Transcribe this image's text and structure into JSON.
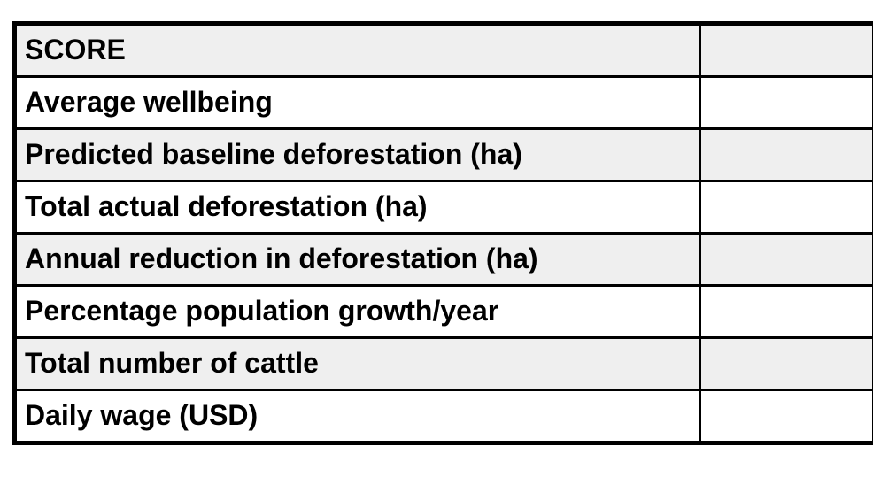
{
  "table": {
    "rows": [
      {
        "label": "SCORE",
        "value": ""
      },
      {
        "label": "Average wellbeing",
        "value": ""
      },
      {
        "label": "Predicted baseline deforestation (ha)",
        "value": ""
      },
      {
        "label": "Total actual deforestation (ha)",
        "value": ""
      },
      {
        "label": "Annual reduction in deforestation (ha)",
        "value": ""
      },
      {
        "label": "Percentage population growth/year",
        "value": ""
      },
      {
        "label": "Total number of cattle",
        "value": ""
      },
      {
        "label": "Daily wage (USD)",
        "value": ""
      }
    ],
    "colors": {
      "row_shade": "#efefef",
      "row_plain": "#ffffff",
      "border": "#000000",
      "text": "#000000"
    }
  }
}
